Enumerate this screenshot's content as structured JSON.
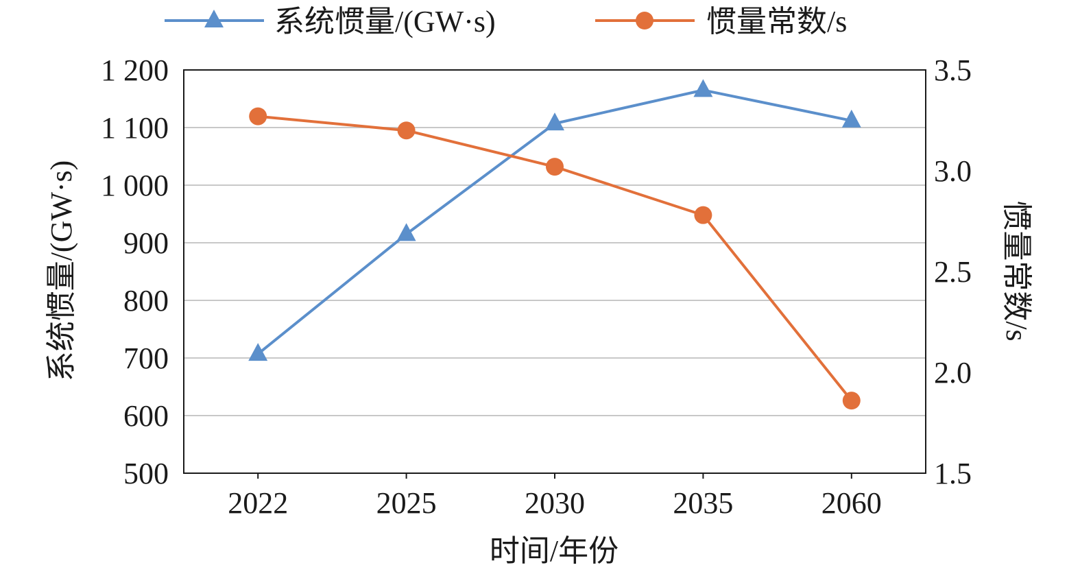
{
  "chart_data": {
    "type": "line",
    "categories": [
      "2022",
      "2025",
      "2030",
      "2035",
      "2060"
    ],
    "xlabel": "时间/年份",
    "ylabel_left": "系统惯量/(GW·s)",
    "ylabel_right": "惯量常数/s",
    "ylim_left": [
      500,
      1200
    ],
    "ylim_right": [
      1.5,
      3.5
    ],
    "yticks_left": [
      "500",
      "600",
      "700",
      "800",
      "900",
      "1 000",
      "1 100",
      "1 200"
    ],
    "yticks_right": [
      "1.5",
      "2.0",
      "2.5",
      "3.0",
      "3.5"
    ],
    "grid": true,
    "legend_position": "top",
    "series": [
      {
        "name": "系统惯量/(GW·s)",
        "axis": "left",
        "marker": "triangle",
        "color": "#5b8fcb",
        "values": [
          707,
          915,
          1107,
          1165,
          1112
        ]
      },
      {
        "name": "惯量常数/s",
        "axis": "right",
        "marker": "circle",
        "color": "#e2703a",
        "values": [
          3.27,
          3.2,
          3.02,
          2.78,
          1.86
        ]
      }
    ]
  }
}
